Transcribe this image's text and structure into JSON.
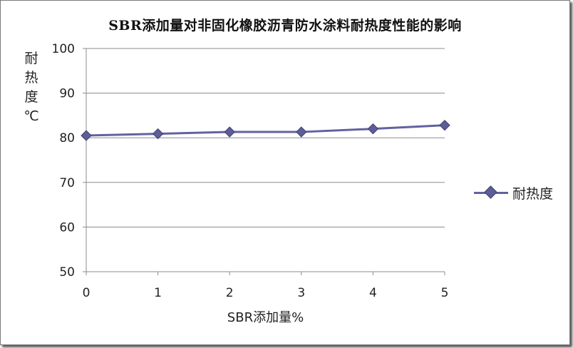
{
  "chart_data": {
    "type": "line",
    "title": "SBR添加量对非固化橡胶沥青防水涂料耐热度性能的影响",
    "ylabel_chars": [
      "耐",
      "热",
      "度",
      "℃"
    ],
    "xlabel": "SBR添加量%",
    "x": [
      0,
      1,
      2,
      3,
      4,
      5
    ],
    "xlim": [
      0,
      5
    ],
    "ylim": [
      50,
      100
    ],
    "yticks": [
      50,
      60,
      70,
      80,
      90,
      100
    ],
    "grid": true,
    "legend_position": "right",
    "series": [
      {
        "name": "耐热度",
        "values": [
          80.5,
          80.9,
          81.3,
          81.3,
          82.0,
          82.8
        ]
      }
    ],
    "colors": {
      "line": "#6262a0",
      "marker": "#5d5d97",
      "grid": "#8c8c8c"
    }
  }
}
